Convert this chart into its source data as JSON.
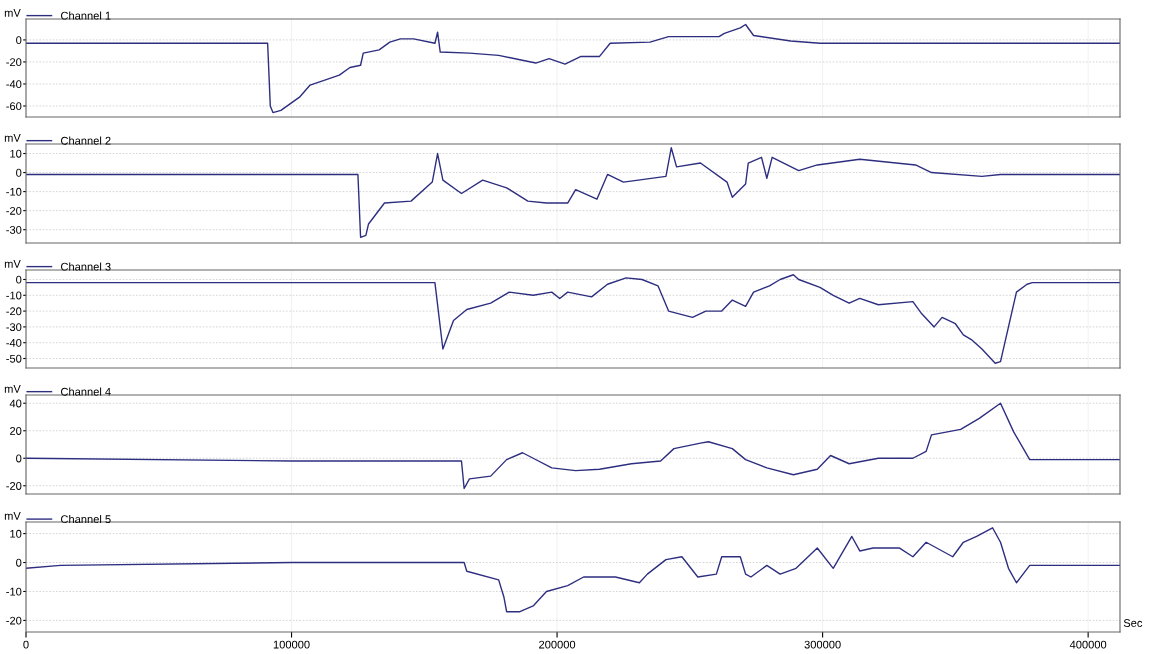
{
  "chart_data": [
    {
      "type": "line",
      "ylabel": "mV",
      "xlim": [
        0,
        412000
      ],
      "ylim": [
        -70,
        19
      ],
      "yticks": [
        -60,
        -40,
        -20,
        0
      ],
      "xticks": [
        0,
        100000,
        200000,
        300000,
        400000
      ],
      "tick_labels": "y",
      "grid": true,
      "legend": "top left",
      "x": [
        0,
        91000,
        92000,
        93000,
        96000,
        103000,
        107000,
        118000,
        122000,
        126000,
        127000,
        133000,
        137000,
        141000,
        146000,
        154000,
        155000,
        156000,
        167000,
        178000,
        186000,
        192000,
        197000,
        203000,
        209000,
        216000,
        220000,
        235000,
        242000,
        261000,
        263000,
        269000,
        271000,
        274000,
        288000,
        299000,
        412000
      ],
      "series": [
        {
          "name": "Channel 1",
          "color": "#2e2e80",
          "values": [
            -3,
            -3,
            -60,
            -66,
            -64,
            -52,
            -41,
            -32,
            -25,
            -23,
            -12,
            -9,
            -2,
            1,
            1,
            -3,
            7,
            -11,
            -12,
            -14,
            -18,
            -21,
            -17,
            -22,
            -15,
            -15,
            -3,
            -2,
            3,
            3,
            6,
            11,
            14,
            4,
            -1,
            -3,
            -3
          ]
        }
      ]
    },
    {
      "type": "line",
      "ylabel": "mV",
      "xlim": [
        0,
        412000
      ],
      "ylim": [
        -37,
        15
      ],
      "yticks": [
        -30,
        -20,
        -10,
        0,
        10
      ],
      "xticks": [
        0,
        100000,
        200000,
        300000,
        400000
      ],
      "tick_labels": "y",
      "grid": true,
      "legend": "top left",
      "x": [
        0,
        125000,
        126000,
        128000,
        129000,
        135000,
        145000,
        153000,
        155000,
        157000,
        164000,
        172000,
        181000,
        189000,
        196000,
        204000,
        207000,
        215000,
        219000,
        225000,
        241000,
        243000,
        245000,
        254000,
        264000,
        266000,
        271000,
        272000,
        277000,
        279000,
        281000,
        291000,
        298000,
        314000,
        335000,
        341000,
        360000,
        367000,
        412000
      ],
      "series": [
        {
          "name": "Channel 2",
          "color": "#2e2e80",
          "values": [
            -1,
            -1,
            -34,
            -33,
            -27,
            -16,
            -15,
            -5,
            10,
            -4,
            -11,
            -4,
            -8,
            -15,
            -16,
            -16,
            -9,
            -14,
            -1,
            -5,
            -2,
            13,
            3,
            5,
            -5,
            -13,
            -6,
            5,
            8,
            -3,
            8,
            1,
            4,
            7,
            4,
            0,
            -2,
            -1,
            -1
          ]
        }
      ]
    },
    {
      "type": "line",
      "ylabel": "mV",
      "xlim": [
        0,
        412000
      ],
      "ylim": [
        -56,
        6
      ],
      "yticks": [
        -50,
        -40,
        -30,
        -20,
        -10,
        0
      ],
      "xticks": [
        0,
        100000,
        200000,
        300000,
        400000
      ],
      "tick_labels": "y",
      "grid": true,
      "legend": "top left",
      "x": [
        0,
        154000,
        157000,
        161000,
        166000,
        175000,
        182000,
        191000,
        198000,
        201000,
        204000,
        213000,
        219000,
        226000,
        232000,
        238000,
        242000,
        251000,
        256000,
        262000,
        266000,
        271000,
        274000,
        280000,
        284000,
        289000,
        291000,
        299000,
        304000,
        310000,
        314000,
        321000,
        334000,
        337000,
        342000,
        345000,
        350000,
        353000,
        356000,
        360000,
        365000,
        367000,
        370000,
        373000,
        377000,
        379000,
        412000
      ],
      "series": [
        {
          "name": "Channel 3",
          "color": "#2e2e80",
          "values": [
            -2,
            -2,
            -44,
            -26,
            -19,
            -15,
            -8,
            -10,
            -8,
            -12,
            -8,
            -11,
            -3,
            1,
            0,
            -4,
            -20,
            -24,
            -20,
            -20,
            -13,
            -17,
            -8,
            -4,
            0,
            3,
            0,
            -5,
            -10,
            -15,
            -12,
            -16,
            -14,
            -21,
            -30,
            -24,
            -28,
            -35,
            -38,
            -44,
            -53,
            -52,
            -30,
            -8,
            -3,
            -2,
            -2
          ]
        }
      ]
    },
    {
      "type": "line",
      "ylabel": "mV",
      "xlim": [
        0,
        412000
      ],
      "ylim": [
        -26,
        46
      ],
      "yticks": [
        -20,
        0,
        20,
        40
      ],
      "xticks": [
        0,
        100000,
        200000,
        300000,
        400000
      ],
      "tick_labels": "y",
      "grid": true,
      "legend": "top left",
      "x": [
        0,
        100000,
        164000,
        165000,
        167000,
        175000,
        181000,
        187000,
        191000,
        198000,
        207000,
        216000,
        228000,
        239000,
        244000,
        254000,
        257000,
        266000,
        271000,
        279000,
        289000,
        298000,
        303000,
        310000,
        321000,
        334000,
        339000,
        341000,
        352000,
        359000,
        367000,
        372000,
        378000,
        412000
      ],
      "series": [
        {
          "name": "Channel 4",
          "color": "#2e2e80",
          "values": [
            0,
            -2,
            -2,
            -22,
            -15,
            -13,
            -1,
            4,
            0,
            -7,
            -9,
            -8,
            -4,
            -2,
            7,
            11,
            12,
            7,
            -1,
            -7,
            -12,
            -8,
            2,
            -4,
            0,
            0,
            5,
            17,
            21,
            29,
            40,
            19,
            -1,
            -1
          ]
        }
      ]
    },
    {
      "type": "line",
      "ylabel": "mV",
      "xlabel": "Sec",
      "xlim": [
        0,
        412000
      ],
      "ylim": [
        -24,
        14
      ],
      "yticks": [
        -20,
        -10,
        0,
        10
      ],
      "xticks": [
        0,
        100000,
        200000,
        300000,
        400000
      ],
      "grid": true,
      "legend": "top left",
      "x": [
        0,
        13000,
        100000,
        165000,
        166000,
        178000,
        180000,
        181000,
        186000,
        191000,
        196000,
        204000,
        210000,
        222000,
        231000,
        234000,
        241000,
        247000,
        253000,
        260000,
        262000,
        269000,
        271000,
        273000,
        279000,
        284000,
        290000,
        298000,
        304000,
        311000,
        314000,
        319000,
        329000,
        334000,
        339000,
        349000,
        353000,
        358000,
        364000,
        367000,
        370000,
        373000,
        378000,
        412000
      ],
      "series": [
        {
          "name": "Channel 5",
          "color": "#2e2e80",
          "values": [
            -2,
            -1,
            0,
            0,
            -3,
            -6,
            -12,
            -17,
            -17,
            -15,
            -10,
            -8,
            -5,
            -5,
            -7,
            -4,
            1,
            2,
            -5,
            -4,
            2,
            2,
            -4,
            -5,
            -1,
            -4,
            -2,
            5,
            -2,
            9,
            4,
            5,
            5,
            2,
            7,
            2,
            7,
            9,
            12,
            7,
            -2,
            -7,
            -1,
            -1
          ]
        }
      ]
    }
  ]
}
